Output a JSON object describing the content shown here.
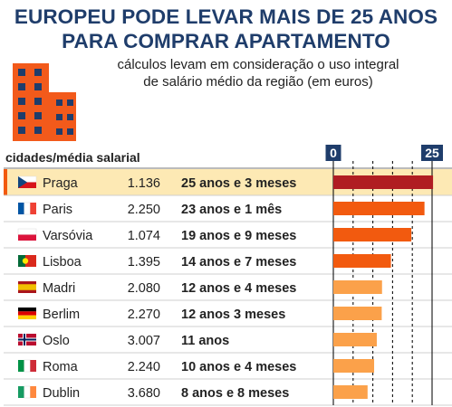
{
  "title_line1": "EUROPEU PODE LEVAR MAIS DE 25 ANOS",
  "title_line2": "PARA COMPRAR APARTAMENTO",
  "subtitle_line1": "cálculos levam em consideração o uso integral",
  "subtitle_line2": "de salário médio da região (em euros)",
  "column_header": "cidades/média salarial",
  "icon": "building-icon",
  "colors": {
    "title": "#1f3d6b",
    "highlight_row": "#fde9b4",
    "top_bar": "#b01d22",
    "bar_dark_orange": "#f25a0f",
    "bar_light_orange": "#fba14a",
    "axis_badge": "#1f3d6b",
    "building": "#f25a1b",
    "windows": "#1f3d6b"
  },
  "chart_data": {
    "type": "bar",
    "orientation": "horizontal",
    "xlim": [
      0,
      25
    ],
    "x_ticks": [
      "0",
      "25"
    ],
    "gridlines": [
      0,
      5,
      10,
      15,
      20,
      25
    ],
    "rows": [
      {
        "city": "Praga",
        "flag": "czech-flag",
        "salary": "1.136",
        "time_label": "25 anos e 3 meses",
        "years": 25.25,
        "highlight": true
      },
      {
        "city": "Paris",
        "flag": "france-flag",
        "salary": "2.250",
        "time_label": "23 anos e 1 mês",
        "years": 23.08
      },
      {
        "city": "Varsóvia",
        "flag": "poland-flag",
        "salary": "1.074",
        "time_label": "19 anos e 9 meses",
        "years": 19.75
      },
      {
        "city": "Lisboa",
        "flag": "portugal-flag",
        "salary": "1.395",
        "time_label": "14 anos e 7 meses",
        "years": 14.58
      },
      {
        "city": "Madri",
        "flag": "spain-flag",
        "salary": "2.080",
        "time_label": "12 anos e 4 meses",
        "years": 12.33
      },
      {
        "city": "Berlim",
        "flag": "germany-flag",
        "salary": "2.270",
        "time_label": "12 anos 3 meses",
        "years": 12.25
      },
      {
        "city": "Oslo",
        "flag": "norway-flag",
        "salary": "3.007",
        "time_label": "11 anos",
        "years": 11.0
      },
      {
        "city": "Roma",
        "flag": "italy-flag",
        "salary": "2.240",
        "time_label": "10 anos e 4 meses",
        "years": 10.33
      },
      {
        "city": "Dublin",
        "flag": "ireland-flag",
        "salary": "3.680",
        "time_label": "8 anos e 8 meses",
        "years": 8.67
      }
    ]
  }
}
